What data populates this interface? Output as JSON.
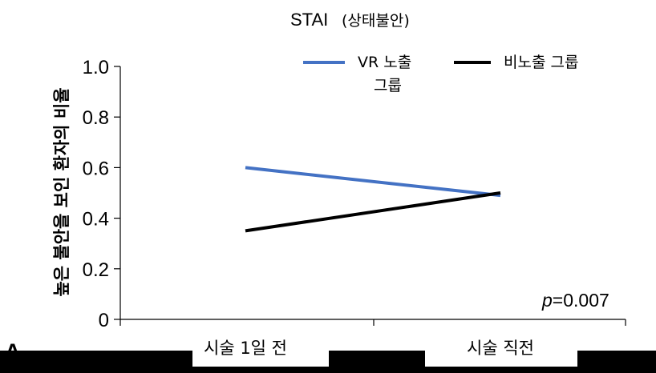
{
  "chart_data": {
    "type": "line",
    "title": "STAI",
    "title_sub": "(상태불안)",
    "ylabel": "높은 불안을 보인 환자의 비율",
    "xlabel": "",
    "categories": [
      "시술 1일 전",
      "시술 직전"
    ],
    "ylim": [
      0,
      1.0
    ],
    "yticks": [
      "0",
      "0.2",
      "0.4",
      "0.6",
      "0.8",
      "1.0"
    ],
    "series": [
      {
        "name_line1": "VR 노출",
        "name_line2": "그룹",
        "color": "#4472c4",
        "values": [
          0.6,
          0.49
        ]
      },
      {
        "name": "비노출 그룹",
        "color": "#000000",
        "values": [
          0.35,
          0.5
        ]
      }
    ],
    "annotation": {
      "p_label": "p",
      "p_value": "=0.007"
    },
    "panel_label": "A",
    "grid": false,
    "legend_position": "top-right"
  }
}
